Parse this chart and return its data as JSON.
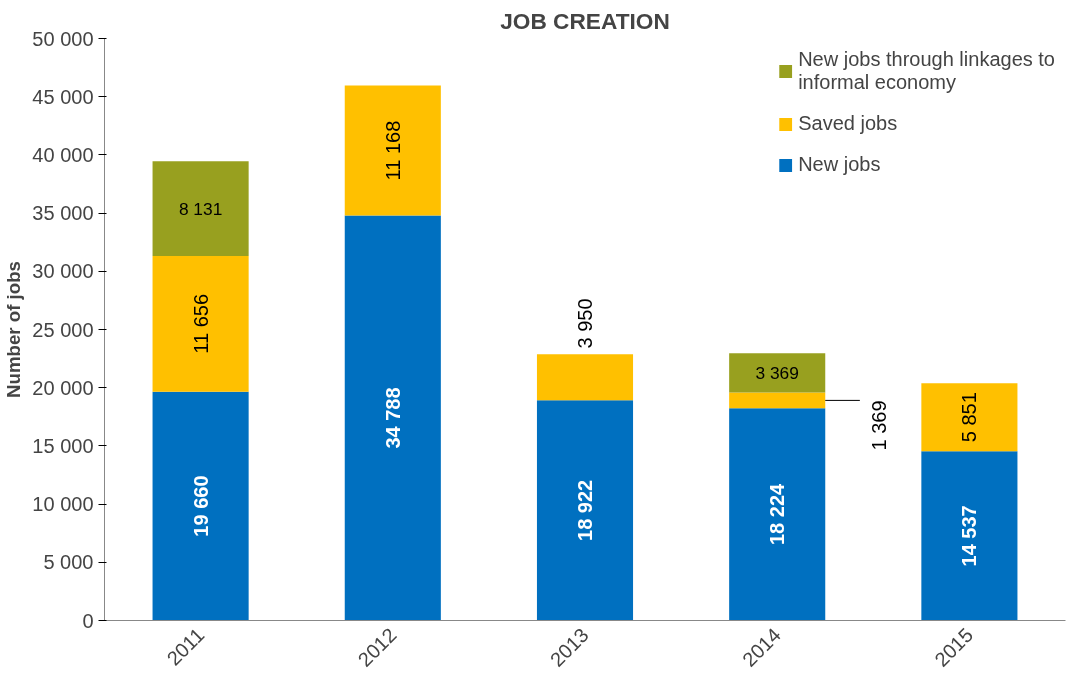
{
  "chart_data": {
    "type": "bar",
    "title": "JOB CREATION",
    "ylabel": "Number of jobs",
    "stacked": true,
    "categories": [
      "2011",
      "2012",
      "2013",
      "2014",
      "2015"
    ],
    "series": [
      {
        "name": "New jobs",
        "color": "#0070c0",
        "values": [
          19660,
          34788,
          18922,
          18224,
          14537
        ],
        "value_labels": [
          "19 660",
          "34 788",
          "18 922",
          "18 224",
          "14 537"
        ]
      },
      {
        "name": "Saved jobs",
        "color": "#ffc000",
        "values": [
          11656,
          11168,
          3950,
          1369,
          5851
        ],
        "value_labels": [
          "11 656",
          "11 168",
          "3 950",
          "1 369",
          "5 851"
        ]
      },
      {
        "name": "New jobs through linkages to informal economy",
        "color": "#98a01f",
        "values": [
          8131,
          null,
          null,
          3369,
          null
        ],
        "value_labels": [
          "8 131",
          null,
          null,
          "3 369",
          null
        ]
      }
    ],
    "ylim": [
      0,
      50000
    ],
    "yticks": [
      0,
      {
        "value": 5000,
        "label": "5 000"
      },
      {
        "value": 10000,
        "label": "10 000"
      },
      {
        "value": 15000,
        "label": "15 000"
      },
      {
        "value": 20000,
        "label": "20 000"
      },
      {
        "value": 25000,
        "label": "25 000"
      },
      {
        "value": 30000,
        "label": "30 000"
      },
      {
        "value": 35000,
        "label": "35 000"
      },
      {
        "value": 40000,
        "label": "40 000"
      },
      {
        "value": 45000,
        "label": "45 000"
      },
      {
        "value": 50000,
        "label": "50 000"
      }
    ],
    "grid": false,
    "legend": "top right"
  }
}
